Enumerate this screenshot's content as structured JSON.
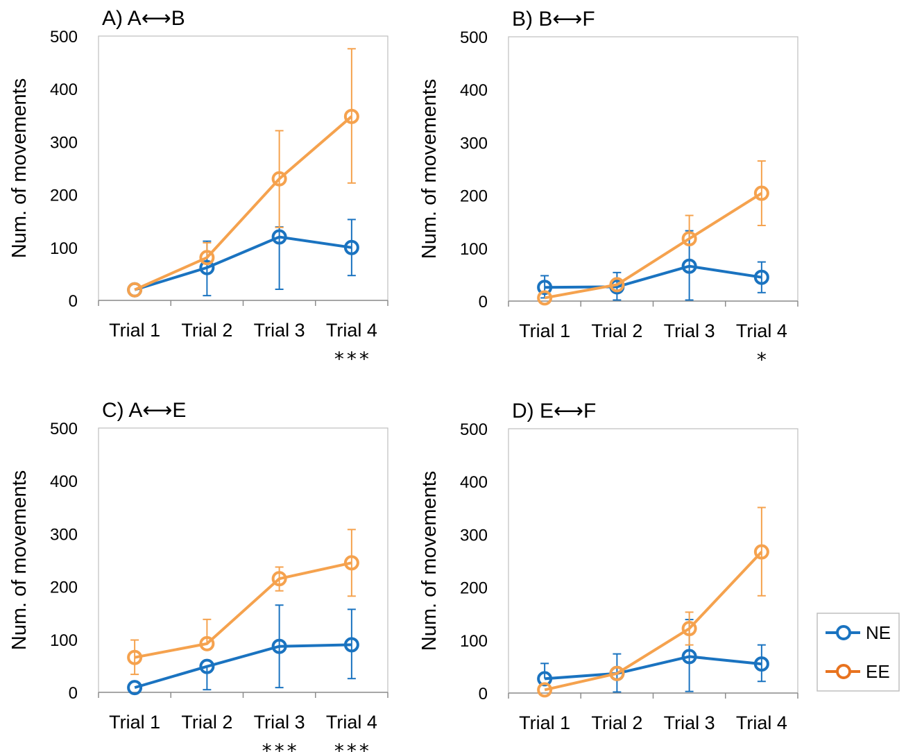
{
  "legend": {
    "items": [
      {
        "label": "NE",
        "color": "#1a73c0"
      },
      {
        "label": "EE",
        "color": "#f5a24e"
      }
    ]
  },
  "chart_data": [
    {
      "type": "line",
      "title": "A) A⟷B",
      "xlabel": "",
      "ylabel": "Num. of movements",
      "ylim": [
        0,
        500
      ],
      "yticks": [
        0,
        100,
        200,
        300,
        400,
        500
      ],
      "categories": [
        "Trial 1",
        "Trial 2",
        "Trial 3",
        "Trial 4"
      ],
      "significance": [
        "",
        "",
        "",
        "***"
      ],
      "series": [
        {
          "name": "NE",
          "color": "#1a73c0",
          "values": [
            20,
            62,
            120,
            100
          ],
          "err_low": [
            0,
            53,
            99,
            53
          ],
          "err_high": [
            0,
            50,
            19,
            53
          ]
        },
        {
          "name": "EE",
          "color": "#f5a24e",
          "values": [
            20,
            81,
            230,
            348
          ],
          "err_low": [
            0,
            0,
            92,
            126
          ],
          "err_high": [
            0,
            28,
            91,
            128
          ]
        }
      ]
    },
    {
      "type": "line",
      "title": "B) B⟷F",
      "xlabel": "",
      "ylabel": "Num. of movements",
      "ylim": [
        0,
        500
      ],
      "yticks": [
        0,
        100,
        200,
        300,
        400,
        500
      ],
      "categories": [
        "Trial 1",
        "Trial 2",
        "Trial 3",
        "Trial 4"
      ],
      "significance": [
        "",
        "",
        "",
        "*"
      ],
      "series": [
        {
          "name": "NE",
          "color": "#1a73c0",
          "values": [
            26,
            27,
            66,
            45
          ],
          "err_low": [
            20,
            25,
            64,
            29
          ],
          "err_high": [
            22,
            27,
            67,
            29
          ]
        },
        {
          "name": "EE",
          "color": "#f5a24e",
          "values": [
            6,
            31,
            118,
            204
          ],
          "err_low": [
            0,
            0,
            0,
            61
          ],
          "err_high": [
            0,
            0,
            44,
            61
          ]
        }
      ]
    },
    {
      "type": "line",
      "title": "C) A⟷E",
      "xlabel": "",
      "ylabel": "Num. of movements",
      "ylim": [
        0,
        500
      ],
      "yticks": [
        0,
        100,
        200,
        300,
        400,
        500
      ],
      "categories": [
        "Trial 1",
        "Trial 2",
        "Trial 3",
        "Trial 4"
      ],
      "significance": [
        "",
        "",
        "***",
        "***"
      ],
      "series": [
        {
          "name": "NE",
          "color": "#1a73c0",
          "values": [
            9,
            49,
            87,
            90
          ],
          "err_low": [
            0,
            44,
            78,
            64
          ],
          "err_high": [
            0,
            0,
            78,
            67
          ]
        },
        {
          "name": "EE",
          "color": "#f5a24e",
          "values": [
            66,
            92,
            215,
            245
          ],
          "err_low": [
            32,
            0,
            23,
            63
          ],
          "err_high": [
            33,
            46,
            22,
            63
          ]
        }
      ]
    },
    {
      "type": "line",
      "title": "D) E⟷F",
      "xlabel": "",
      "ylabel": "Num. of movements",
      "ylim": [
        0,
        500
      ],
      "yticks": [
        0,
        100,
        200,
        300,
        400,
        500
      ],
      "categories": [
        "Trial 1",
        "Trial 2",
        "Trial 3",
        "Trial 4"
      ],
      "significance": [
        "",
        "",
        "",
        ""
      ],
      "series": [
        {
          "name": "NE",
          "color": "#1a73c0",
          "values": [
            27,
            37,
            69,
            55
          ],
          "err_low": [
            0,
            35,
            66,
            33
          ],
          "err_high": [
            29,
            37,
            70,
            36
          ]
        },
        {
          "name": "EE",
          "color": "#f5a24e",
          "values": [
            6,
            37,
            122,
            267
          ],
          "err_low": [
            0,
            0,
            31,
            83
          ],
          "err_high": [
            0,
            0,
            31,
            84
          ]
        }
      ]
    }
  ]
}
